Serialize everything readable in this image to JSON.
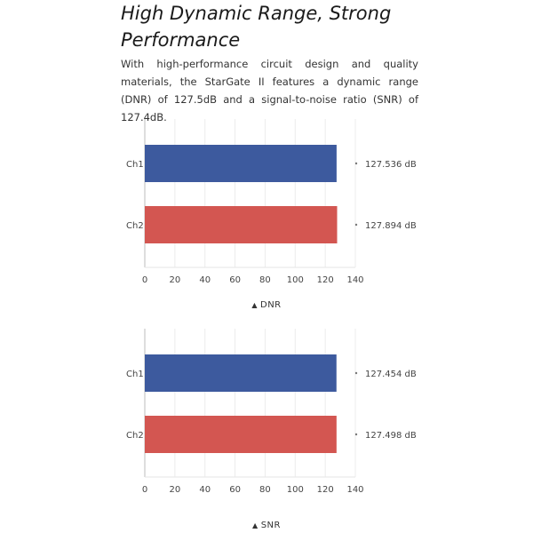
{
  "heading": {
    "title": "High Dynamic Range, Strong Performance",
    "description": "With high-performance circuit design and quality materials, the StarGate II features a dynamic range (DNR) of 127.5dB and a signal-to-noise ratio (SNR) of 127.4dB."
  },
  "colors": {
    "ch1": "#3d5a9e",
    "ch2": "#d35651"
  },
  "chart_data": [
    {
      "type": "bar",
      "orientation": "horizontal",
      "categories": [
        "Ch1",
        "Ch2"
      ],
      "values": [
        127.536,
        127.894
      ],
      "value_labels": [
        "127.536 dB",
        "127.894 dB"
      ],
      "xlim": [
        0,
        140
      ],
      "xticks": [
        "0",
        "20",
        "40",
        "60",
        "80",
        "100",
        "120",
        "140"
      ],
      "caption": "DNR",
      "caption_marker": "▲",
      "grid": true
    },
    {
      "type": "bar",
      "orientation": "horizontal",
      "categories": [
        "Ch1",
        "Ch2"
      ],
      "values": [
        127.454,
        127.498
      ],
      "value_labels": [
        "127.454 dB",
        "127.498 dB"
      ],
      "xlim": [
        0,
        140
      ],
      "xticks": [
        "0",
        "20",
        "40",
        "60",
        "80",
        "100",
        "120",
        "140"
      ],
      "caption": "SNR",
      "caption_marker": "▲",
      "grid": true
    }
  ]
}
